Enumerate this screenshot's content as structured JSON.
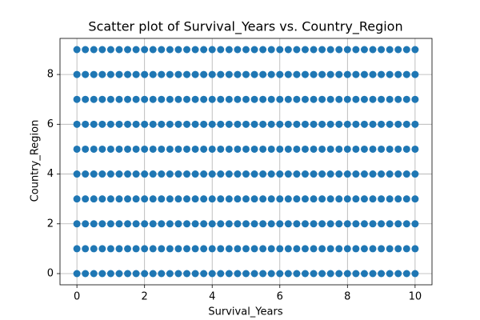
{
  "chart_data": {
    "type": "scatter",
    "title": "Scatter plot of Survival_Years vs. Country_Region",
    "xlabel": "Survival_Years",
    "ylabel": "Country_Region",
    "xlim": [
      -0.5,
      10.5
    ],
    "ylim": [
      -0.45,
      9.45
    ],
    "xticks": [
      0,
      2,
      4,
      6,
      8,
      10
    ],
    "yticks": [
      0,
      2,
      4,
      6,
      8
    ],
    "grid": true,
    "series": [
      {
        "color": "#1f77b4",
        "x": [
          0,
          0.25,
          0.5,
          0.75,
          1,
          1.25,
          1.5,
          1.75,
          2,
          2.25,
          2.5,
          2.75,
          3,
          3.25,
          3.5,
          3.75,
          4,
          4.25,
          4.5,
          4.75,
          5,
          5.25,
          5.5,
          5.75,
          6,
          6.25,
          6.5,
          6.75,
          7,
          7.25,
          7.5,
          7.75,
          8,
          8.25,
          8.5,
          8.75,
          9,
          9.25,
          9.5,
          9.75,
          10,
          0,
          0.25,
          0.5,
          0.75,
          1,
          1.25,
          1.5,
          1.75,
          2,
          2.25,
          2.5,
          2.75,
          3,
          3.25,
          3.5,
          3.75,
          4,
          4.25,
          4.5,
          4.75,
          5,
          5.25,
          5.5,
          5.75,
          6,
          6.25,
          6.5,
          6.75,
          7,
          7.25,
          7.5,
          7.75,
          8,
          8.25,
          8.5,
          8.75,
          9,
          9.25,
          9.5,
          9.75,
          10,
          0,
          0.25,
          0.5,
          0.75,
          1,
          1.25,
          1.5,
          1.75,
          2,
          2.25,
          2.5,
          2.75,
          3,
          3.25,
          3.5,
          3.75,
          4,
          4.25,
          4.5,
          4.75,
          5,
          5.25,
          5.5,
          5.75,
          6,
          6.25,
          6.5,
          6.75,
          7,
          7.25,
          7.5,
          7.75,
          8,
          8.25,
          8.5,
          8.75,
          9,
          9.25,
          9.5,
          9.75,
          10,
          0,
          0.25,
          0.5,
          0.75,
          1,
          1.25,
          1.5,
          1.75,
          2,
          2.25,
          2.5,
          2.75,
          3,
          3.25,
          3.5,
          3.75,
          4,
          4.25,
          4.5,
          4.75,
          5,
          5.25,
          5.5,
          5.75,
          6,
          6.25,
          6.5,
          6.75,
          7,
          7.25,
          7.5,
          7.75,
          8,
          8.25,
          8.5,
          8.75,
          9,
          9.25,
          9.5,
          9.75,
          10,
          0,
          0.25,
          0.5,
          0.75,
          1,
          1.25,
          1.5,
          1.75,
          2,
          2.25,
          2.5,
          2.75,
          3,
          3.25,
          3.5,
          3.75,
          4,
          4.25,
          4.5,
          4.75,
          5,
          5.25,
          5.5,
          5.75,
          6,
          6.25,
          6.5,
          6.75,
          7,
          7.25,
          7.5,
          7.75,
          8,
          8.25,
          8.5,
          8.75,
          9,
          9.25,
          9.5,
          9.75,
          10,
          0,
          0.25,
          0.5,
          0.75,
          1,
          1.25,
          1.5,
          1.75,
          2,
          2.25,
          2.5,
          2.75,
          3,
          3.25,
          3.5,
          3.75,
          4,
          4.25,
          4.5,
          4.75,
          5,
          5.25,
          5.5,
          5.75,
          6,
          6.25,
          6.5,
          6.75,
          7,
          7.25,
          7.5,
          7.75,
          8,
          8.25,
          8.5,
          8.75,
          9,
          9.25,
          9.5,
          9.75,
          10,
          0,
          0.25,
          0.5,
          0.75,
          1,
          1.25,
          1.5,
          1.75,
          2,
          2.25,
          2.5,
          2.75,
          3,
          3.25,
          3.5,
          3.75,
          4,
          4.25,
          4.5,
          4.75,
          5,
          5.25,
          5.5,
          5.75,
          6,
          6.25,
          6.5,
          6.75,
          7,
          7.25,
          7.5,
          7.75,
          8,
          8.25,
          8.5,
          8.75,
          9,
          9.25,
          9.5,
          9.75,
          10,
          0,
          0.25,
          0.5,
          0.75,
          1,
          1.25,
          1.5,
          1.75,
          2,
          2.25,
          2.5,
          2.75,
          3,
          3.25,
          3.5,
          3.75,
          4,
          4.25,
          4.5,
          4.75,
          5,
          5.25,
          5.5,
          5.75,
          6,
          6.25,
          6.5,
          6.75,
          7,
          7.25,
          7.5,
          7.75,
          8,
          8.25,
          8.5,
          8.75,
          9,
          9.25,
          9.5,
          9.75,
          10,
          0,
          0.25,
          0.5,
          0.75,
          1,
          1.25,
          1.5,
          1.75,
          2,
          2.25,
          2.5,
          2.75,
          3,
          3.25,
          3.5,
          3.75,
          4,
          4.25,
          4.5,
          4.75,
          5,
          5.25,
          5.5,
          5.75,
          6,
          6.25,
          6.5,
          6.75,
          7,
          7.25,
          7.5,
          7.75,
          8,
          8.25,
          8.5,
          8.75,
          9,
          9.25,
          9.5,
          9.75,
          10,
          0,
          0.25,
          0.5,
          0.75,
          1,
          1.25,
          1.5,
          1.75,
          2,
          2.25,
          2.5,
          2.75,
          3,
          3.25,
          3.5,
          3.75,
          4,
          4.25,
          4.5,
          4.75,
          5,
          5.25,
          5.5,
          5.75,
          6,
          6.25,
          6.5,
          6.75,
          7,
          7.25,
          7.5,
          7.75,
          8,
          8.25,
          8.5,
          8.75,
          9,
          9.25,
          9.5,
          9.75,
          10
        ],
        "values": [
          0,
          0,
          0,
          0,
          0,
          0,
          0,
          0,
          0,
          0,
          0,
          0,
          0,
          0,
          0,
          0,
          0,
          0,
          0,
          0,
          0,
          0,
          0,
          0,
          0,
          0,
          0,
          0,
          0,
          0,
          0,
          0,
          0,
          0,
          0,
          0,
          0,
          0,
          0,
          0,
          0,
          1,
          1,
          1,
          1,
          1,
          1,
          1,
          1,
          1,
          1,
          1,
          1,
          1,
          1,
          1,
          1,
          1,
          1,
          1,
          1,
          1,
          1,
          1,
          1,
          1,
          1,
          1,
          1,
          1,
          1,
          1,
          1,
          1,
          1,
          1,
          1,
          1,
          1,
          1,
          1,
          1,
          2,
          2,
          2,
          2,
          2,
          2,
          2,
          2,
          2,
          2,
          2,
          2,
          2,
          2,
          2,
          2,
          2,
          2,
          2,
          2,
          2,
          2,
          2,
          2,
          2,
          2,
          2,
          2,
          2,
          2,
          2,
          2,
          2,
          2,
          2,
          2,
          2,
          2,
          2,
          2,
          2,
          3,
          3,
          3,
          3,
          3,
          3,
          3,
          3,
          3,
          3,
          3,
          3,
          3,
          3,
          3,
          3,
          3,
          3,
          3,
          3,
          3,
          3,
          3,
          3,
          3,
          3,
          3,
          3,
          3,
          3,
          3,
          3,
          3,
          3,
          3,
          3,
          3,
          3,
          3,
          3,
          3,
          4,
          4,
          4,
          4,
          4,
          4,
          4,
          4,
          4,
          4,
          4,
          4,
          4,
          4,
          4,
          4,
          4,
          4,
          4,
          4,
          4,
          4,
          4,
          4,
          4,
          4,
          4,
          4,
          4,
          4,
          4,
          4,
          4,
          4,
          4,
          4,
          4,
          4,
          4,
          4,
          4,
          5,
          5,
          5,
          5,
          5,
          5,
          5,
          5,
          5,
          5,
          5,
          5,
          5,
          5,
          5,
          5,
          5,
          5,
          5,
          5,
          5,
          5,
          5,
          5,
          5,
          5,
          5,
          5,
          5,
          5,
          5,
          5,
          5,
          5,
          5,
          5,
          5,
          5,
          5,
          5,
          5,
          6,
          6,
          6,
          6,
          6,
          6,
          6,
          6,
          6,
          6,
          6,
          6,
          6,
          6,
          6,
          6,
          6,
          6,
          6,
          6,
          6,
          6,
          6,
          6,
          6,
          6,
          6,
          6,
          6,
          6,
          6,
          6,
          6,
          6,
          6,
          6,
          6,
          6,
          6,
          6,
          6,
          7,
          7,
          7,
          7,
          7,
          7,
          7,
          7,
          7,
          7,
          7,
          7,
          7,
          7,
          7,
          7,
          7,
          7,
          7,
          7,
          7,
          7,
          7,
          7,
          7,
          7,
          7,
          7,
          7,
          7,
          7,
          7,
          7,
          7,
          7,
          7,
          7,
          7,
          7,
          7,
          7,
          8,
          8,
          8,
          8,
          8,
          8,
          8,
          8,
          8,
          8,
          8,
          8,
          8,
          8,
          8,
          8,
          8,
          8,
          8,
          8,
          8,
          8,
          8,
          8,
          8,
          8,
          8,
          8,
          8,
          8,
          8,
          8,
          8,
          8,
          8,
          8,
          8,
          8,
          8,
          8,
          8,
          9,
          9,
          9,
          9,
          9,
          9,
          9,
          9,
          9,
          9,
          9,
          9,
          9,
          9,
          9,
          9,
          9,
          9,
          9,
          9,
          9,
          9,
          9,
          9,
          9,
          9,
          9,
          9,
          9,
          9,
          9,
          9,
          9,
          9,
          9,
          9,
          9,
          9,
          9,
          9,
          9
        ]
      }
    ]
  }
}
